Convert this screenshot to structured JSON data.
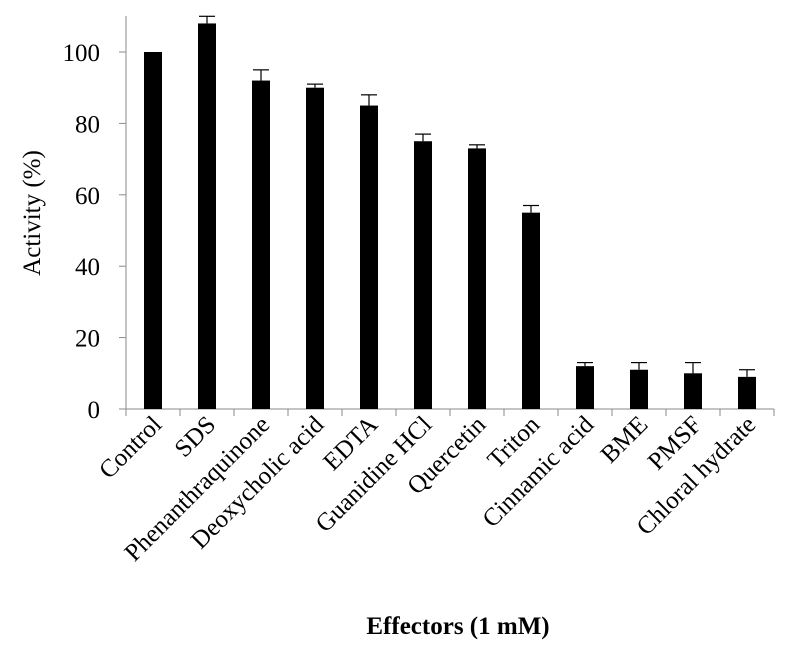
{
  "chart_data": {
    "type": "bar",
    "title": "",
    "xlabel": "Effectors (1 mM)",
    "ylabel": "Activity (%)",
    "ylim": [
      0,
      110
    ],
    "yticks": [
      0,
      20,
      40,
      60,
      80,
      100
    ],
    "grid": false,
    "legend": "none",
    "bar_color": "#000000",
    "categories": [
      "Control",
      "SDS",
      "Phenanthraquinone",
      "Deoxycholic acid",
      "EDTA",
      "Guanidine HCl",
      "Quercetin",
      "Triton",
      "Cinnamic acid",
      "BME",
      "PMSF",
      "Chloral hydrate"
    ],
    "values": [
      100,
      108,
      92,
      90,
      85,
      75,
      73,
      55,
      12,
      11,
      10,
      9
    ],
    "errors": [
      0,
      2,
      3,
      1,
      3,
      2,
      1,
      2,
      1,
      2,
      3,
      2
    ]
  }
}
